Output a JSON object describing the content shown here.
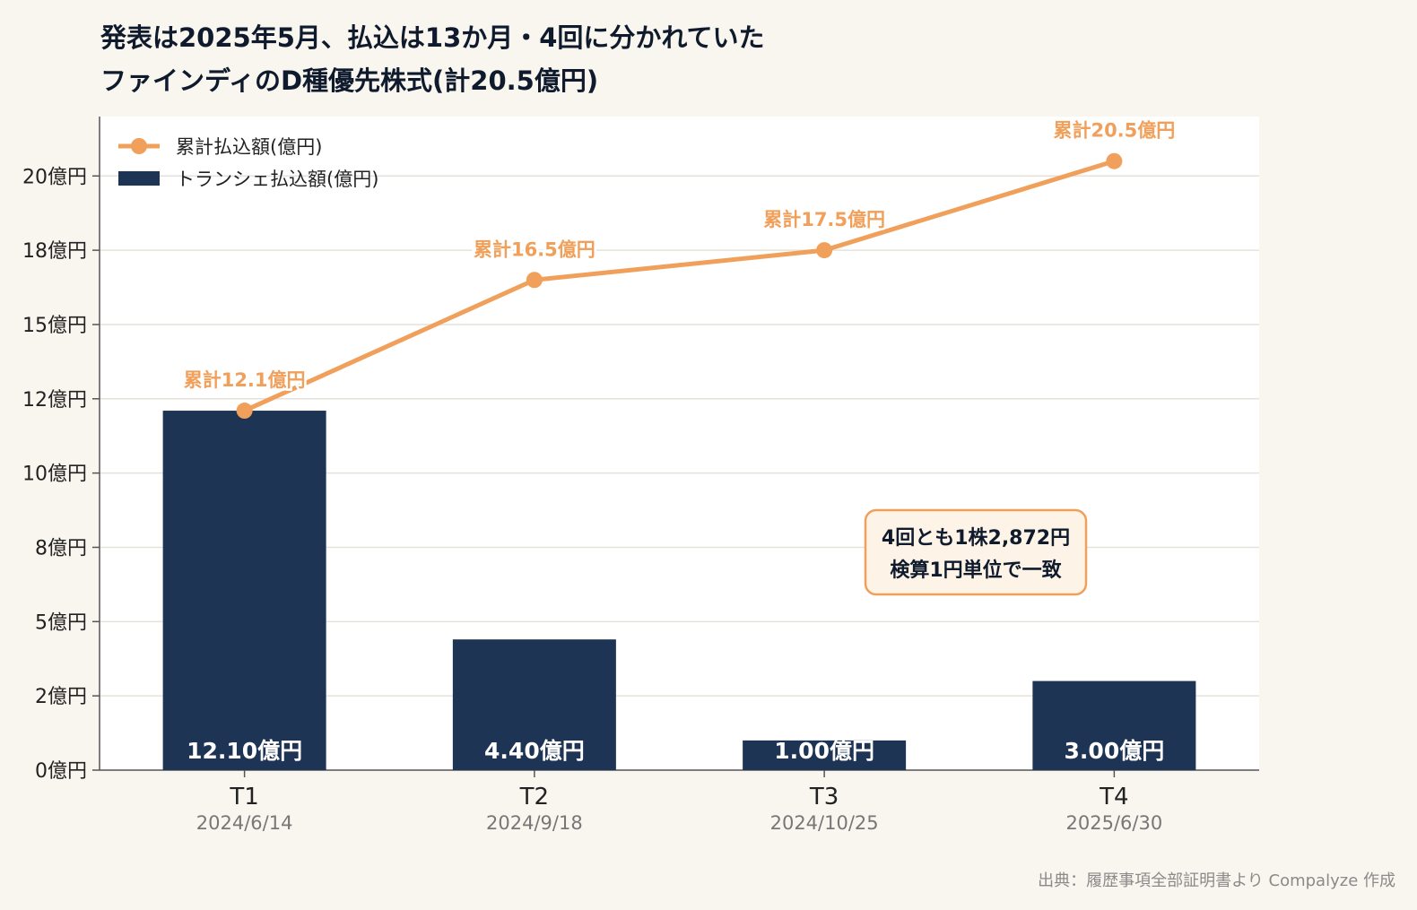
{
  "title": {
    "line1": "発表は2025年5月、払込は13か月・4回に分かれていた",
    "line2": "ファインディのD種優先株式(計20.5億円)"
  },
  "source": "出典：履歴事項全部証明書より Compalyze 作成",
  "colors": {
    "bar": "#1e3455",
    "line": "#f0a05a",
    "background": "#f9f6ef",
    "plot": "#ffffff",
    "grid": "#e4e2da"
  },
  "chart_data": {
    "type": "bar",
    "categories": [
      "T1",
      "T2",
      "T3",
      "T4"
    ],
    "dates": [
      "2024/6/14",
      "2024/9/18",
      "2024/10/25",
      "2025/6/30"
    ],
    "ylim": [
      0,
      22
    ],
    "y_ticks": [
      0,
      2.5,
      5,
      7.5,
      10,
      12.5,
      15,
      17.5,
      20
    ],
    "y_tick_labels": [
      "0億円",
      "2億円",
      "5億円",
      "8億円",
      "10億円",
      "12億円",
      "15億円",
      "18億円",
      "20億円"
    ],
    "grid": true,
    "legend_position": "top-left",
    "series": [
      {
        "name": "トランシェ払込額(億円)",
        "type": "bar",
        "values": [
          12.1,
          4.4,
          1.0,
          3.0
        ],
        "labels": [
          "12.10億円",
          "4.40億円",
          "1.00億円",
          "3.00億円"
        ]
      },
      {
        "name": "累計払込額(億円)",
        "type": "line",
        "values": [
          12.1,
          16.5,
          17.5,
          20.5
        ],
        "labels": [
          "累計12.1億円",
          "累計16.5億円",
          "累計17.5億円",
          "累計20.5億円"
        ]
      }
    ],
    "annotation": {
      "line1": "4回とも1株2,872円",
      "line2": "検算1円単位で一致"
    }
  }
}
